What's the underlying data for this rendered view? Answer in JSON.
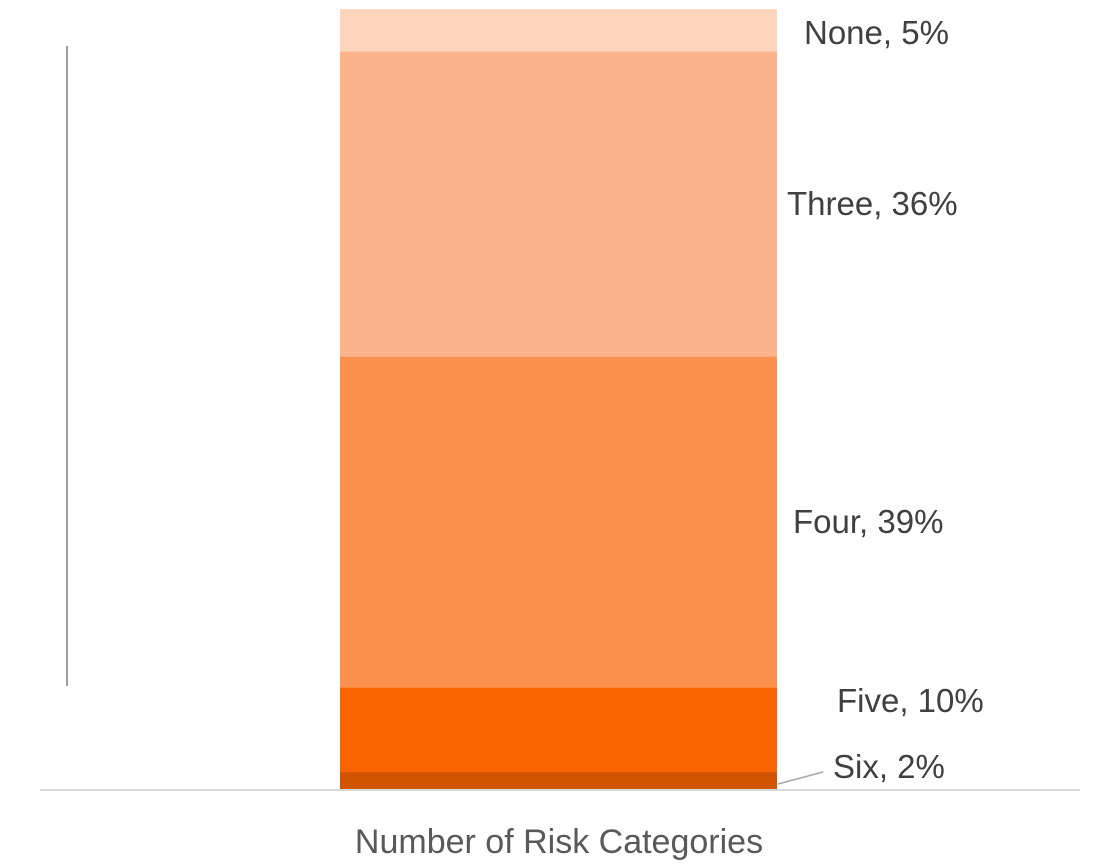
{
  "chart_data": {
    "type": "bar",
    "stacked": true,
    "title": "",
    "xlabel": "Number of Risk Categories",
    "ylabel": "",
    "ylim": [
      0,
      100
    ],
    "grid": false,
    "legend": "none",
    "categories": [
      "Number of Risk Categories"
    ],
    "series": [
      {
        "name": "Six",
        "value": 2,
        "label": "Six, 2%",
        "color": "#D35400"
      },
      {
        "name": "Five",
        "value": 10,
        "label": "Five, 10%",
        "color": "#F96300"
      },
      {
        "name": "Four",
        "value": 39,
        "label": "Four, 39%",
        "color": "#FC914E"
      },
      {
        "name": "Three",
        "value": 36,
        "label": "Three, 36%",
        "color": "#FDB38C"
      },
      {
        "name": "None",
        "value": 5,
        "label": "None, 5%",
        "color": "#FDD5BD"
      }
    ]
  }
}
